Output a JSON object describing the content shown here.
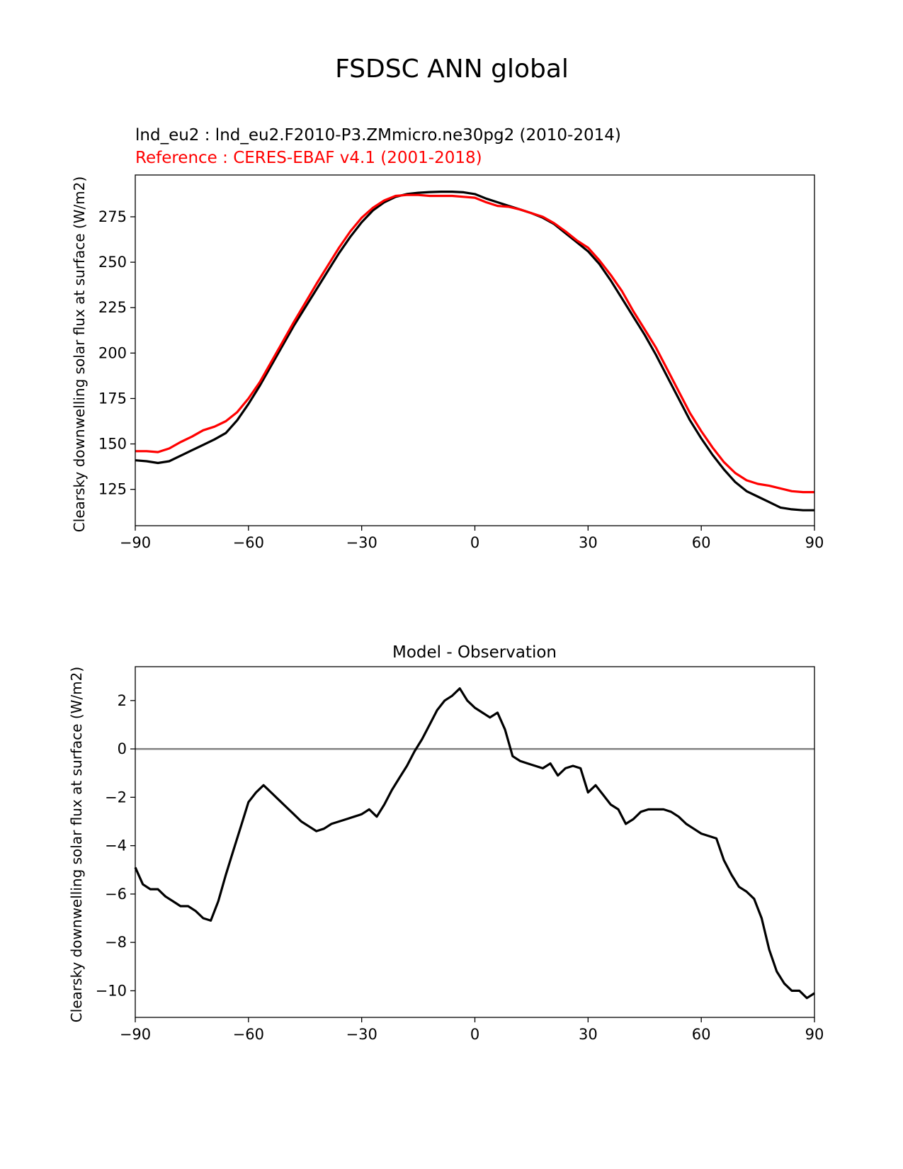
{
  "suptitle": "FSDSC ANN global",
  "chart_data": [
    {
      "type": "line",
      "test_label": "lnd_eu2 : lnd_eu2.F2010-P3.ZMmicro.ne30pg2 (2010-2014)",
      "reference_label": "Reference : CERES-EBAF v4.1 (2001-2018)",
      "xlabel": "",
      "ylabel": "Clearsky downwelling solar flux at surface (W/m2)",
      "xlim": [
        -90,
        90
      ],
      "ylim": [
        105,
        298
      ],
      "xticks": [
        -90,
        -60,
        -30,
        0,
        30,
        60,
        90
      ],
      "xtick_labels": [
        "−90",
        "−60",
        "−30",
        "0",
        "30",
        "60",
        "90"
      ],
      "yticks": [
        125,
        150,
        175,
        200,
        225,
        250,
        275
      ],
      "ytick_labels": [
        "125",
        "150",
        "175",
        "200",
        "225",
        "250",
        "275"
      ],
      "series": [
        {
          "name": "test",
          "color": "#000000",
          "x": [
            -90,
            -87,
            -84,
            -81,
            -78,
            -75,
            -72,
            -69,
            -66,
            -63,
            -60,
            -57,
            -54,
            -51,
            -48,
            -45,
            -42,
            -39,
            -36,
            -33,
            -30,
            -27,
            -24,
            -21,
            -18,
            -15,
            -12,
            -9,
            -6,
            -3,
            0,
            3,
            6,
            9,
            12,
            15,
            18,
            21,
            24,
            27,
            30,
            33,
            36,
            39,
            42,
            45,
            48,
            51,
            54,
            57,
            60,
            63,
            66,
            69,
            72,
            75,
            78,
            81,
            84,
            87,
            90
          ],
          "values": [
            141,
            140.5,
            139.5,
            140.5,
            143.5,
            146.5,
            149.5,
            152.5,
            156,
            163,
            172,
            182,
            193,
            204,
            215,
            225,
            235,
            245,
            255,
            264,
            272,
            278.5,
            283,
            286,
            287.5,
            288.2,
            288.6,
            288.8,
            288.8,
            288.5,
            287.5,
            285,
            283,
            281,
            279,
            277,
            274.5,
            271,
            266,
            261,
            256,
            249,
            240,
            230,
            220,
            210,
            199,
            187,
            175,
            163,
            153,
            144,
            136,
            129,
            124,
            121,
            118,
            115,
            114,
            113.5,
            113.5
          ]
        },
        {
          "name": "reference",
          "color": "#ff0000",
          "x": [
            -90,
            -87,
            -84,
            -81,
            -78,
            -75,
            -72,
            -69,
            -66,
            -63,
            -60,
            -57,
            -54,
            -51,
            -48,
            -45,
            -42,
            -39,
            -36,
            -33,
            -30,
            -27,
            -24,
            -21,
            -18,
            -15,
            -12,
            -9,
            -6,
            -3,
            0,
            3,
            6,
            9,
            12,
            15,
            18,
            21,
            24,
            27,
            30,
            33,
            36,
            39,
            42,
            45,
            48,
            51,
            54,
            57,
            60,
            63,
            66,
            69,
            72,
            75,
            78,
            81,
            84,
            87,
            90
          ],
          "values": [
            146,
            146,
            145.5,
            147.5,
            151,
            154,
            157.5,
            159.5,
            162.5,
            167.5,
            175,
            184,
            195,
            206,
            217,
            227.5,
            238,
            248,
            258,
            267,
            274.5,
            280,
            284,
            286.5,
            287,
            287,
            286.5,
            286.5,
            286.5,
            286,
            285.5,
            283,
            281,
            280.5,
            279,
            277,
            275,
            271.5,
            267,
            262,
            258,
            251,
            243,
            234,
            223,
            213,
            203,
            191,
            179,
            167,
            157,
            148,
            140,
            134,
            130,
            128,
            127,
            125.5,
            124,
            123.5,
            123.5
          ]
        }
      ]
    },
    {
      "type": "line",
      "title": "Model - Observation",
      "xlabel": "",
      "ylabel": "Clearsky downwelling solar flux at surface (W/m2)",
      "xlim": [
        -90,
        90
      ],
      "ylim": [
        -11.1,
        3.4
      ],
      "xticks": [
        -90,
        -60,
        -30,
        0,
        30,
        60,
        90
      ],
      "xtick_labels": [
        "−90",
        "−60",
        "−30",
        "0",
        "30",
        "60",
        "90"
      ],
      "yticks": [
        -10,
        -8,
        -6,
        -4,
        -2,
        0,
        2
      ],
      "ytick_labels": [
        "−10",
        "−8",
        "−6",
        "−4",
        "−2",
        "0",
        "2"
      ],
      "zero_line": 0,
      "series": [
        {
          "name": "difference",
          "color": "#000000",
          "x": [
            -90,
            -88,
            -86,
            -84,
            -82,
            -80,
            -78,
            -76,
            -74,
            -72,
            -70,
            -68,
            -66,
            -64,
            -62,
            -60,
            -58,
            -56,
            -54,
            -52,
            -50,
            -48,
            -46,
            -44,
            -42,
            -40,
            -38,
            -36,
            -34,
            -32,
            -30,
            -28,
            -26,
            -24,
            -22,
            -20,
            -18,
            -16,
            -14,
            -12,
            -10,
            -8,
            -6,
            -4,
            -2,
            0,
            2,
            4,
            6,
            8,
            10,
            12,
            14,
            16,
            18,
            20,
            22,
            24,
            26,
            28,
            30,
            32,
            34,
            36,
            38,
            40,
            42,
            44,
            46,
            48,
            50,
            52,
            54,
            56,
            58,
            60,
            62,
            64,
            66,
            68,
            70,
            72,
            74,
            76,
            78,
            80,
            82,
            84,
            86,
            88,
            90
          ],
          "values": [
            -4.9,
            -5.6,
            -5.8,
            -5.8,
            -6.1,
            -6.3,
            -6.5,
            -6.5,
            -6.7,
            -7.0,
            -7.1,
            -6.3,
            -5.2,
            -4.2,
            -3.2,
            -2.2,
            -1.8,
            -1.5,
            -1.8,
            -2.1,
            -2.4,
            -2.7,
            -3.0,
            -3.2,
            -3.4,
            -3.3,
            -3.1,
            -3.0,
            -2.9,
            -2.8,
            -2.7,
            -2.5,
            -2.8,
            -2.3,
            -1.7,
            -1.2,
            -0.7,
            -0.1,
            0.4,
            1.0,
            1.6,
            2.0,
            2.2,
            2.5,
            2.0,
            1.7,
            1.5,
            1.3,
            1.5,
            0.8,
            -0.3,
            -0.5,
            -0.6,
            -0.7,
            -0.8,
            -0.6,
            -1.1,
            -0.8,
            -0.7,
            -0.8,
            -1.8,
            -1.5,
            -1.9,
            -2.3,
            -2.5,
            -3.1,
            -2.9,
            -2.6,
            -2.5,
            -2.5,
            -2.5,
            -2.6,
            -2.8,
            -3.1,
            -3.3,
            -3.5,
            -3.6,
            -3.7,
            -4.6,
            -5.2,
            -5.7,
            -5.9,
            -6.2,
            -7.0,
            -8.3,
            -9.2,
            -9.7,
            -10.0,
            -10.0,
            -10.3,
            -10.1
          ]
        }
      ]
    }
  ]
}
